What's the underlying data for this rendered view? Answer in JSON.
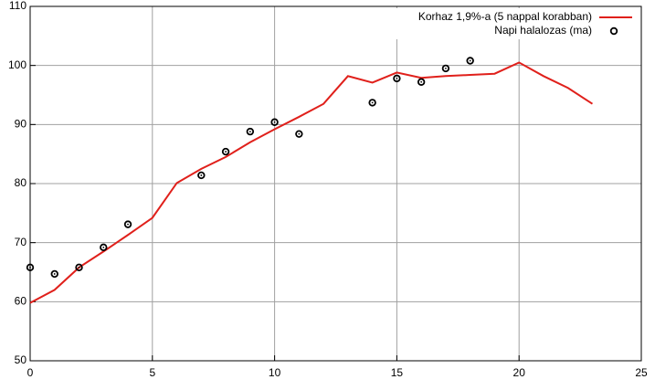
{
  "chart_data": {
    "type": "line",
    "series": [
      {
        "name": "Korhaz  1,9%-a (5 nappal korabban)",
        "color": "#e0201b",
        "type": "line",
        "x": [
          0,
          1,
          2,
          3,
          4,
          5,
          6,
          7,
          8,
          9,
          10,
          11,
          12,
          13,
          14,
          15,
          16,
          17,
          18,
          19,
          20,
          21,
          22,
          23
        ],
        "values": [
          59.8,
          62,
          65.8,
          68.5,
          71.3,
          74.2,
          80.1,
          82.5,
          84.5,
          87,
          89.2,
          91.3,
          93.5,
          98.2,
          97.1,
          98.8,
          97.9,
          98.2,
          98.4,
          98.6,
          100.5,
          98.2,
          96.2,
          93.5
        ]
      },
      {
        "name": "Napi halalozas (ma)",
        "color": "#000000",
        "type": "scatter",
        "x": [
          0,
          1,
          2,
          3,
          4,
          7,
          8,
          9,
          10,
          11,
          14,
          15,
          16,
          17,
          18
        ],
        "values": [
          65.8,
          64.7,
          65.8,
          69.2,
          73.1,
          81.4,
          85.4,
          88.8,
          90.4,
          88.4,
          93.7,
          97.8,
          97.2,
          99.5,
          100.8
        ]
      }
    ],
    "xlim": [
      0,
      25
    ],
    "xticks": [
      0,
      5,
      10,
      15,
      20,
      25
    ],
    "ylim": [
      50,
      110
    ],
    "yticks": [
      50,
      60,
      70,
      80,
      90,
      100,
      110
    ],
    "grid": true,
    "legend": "top-right"
  }
}
